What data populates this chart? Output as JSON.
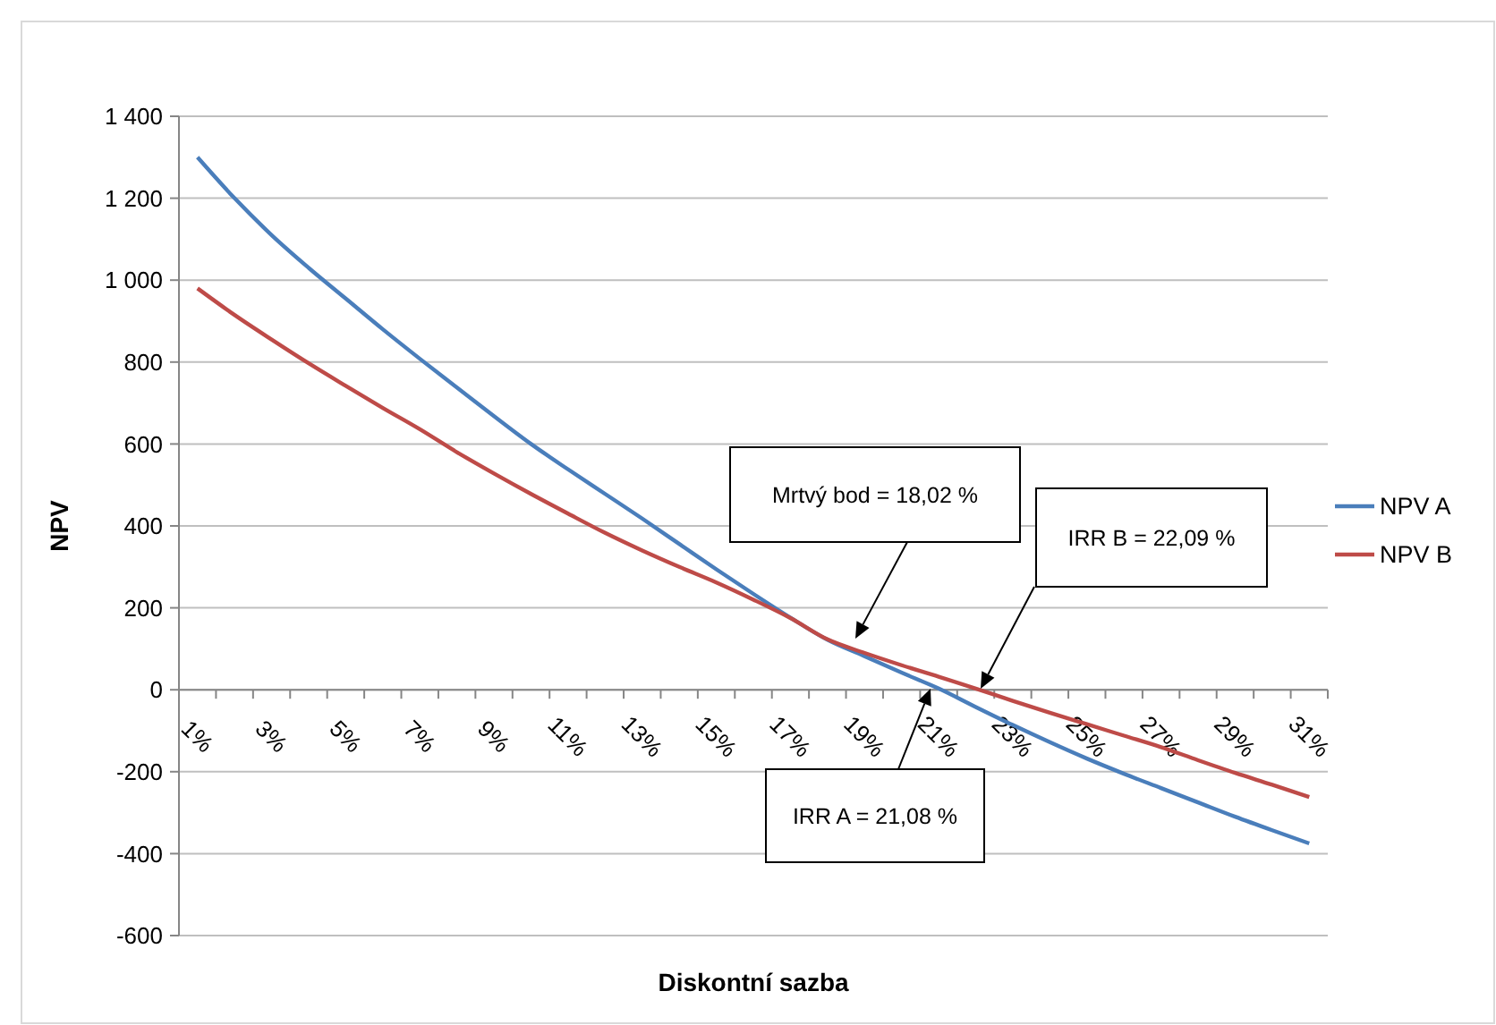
{
  "chart_data": {
    "type": "line",
    "xlabel": "Diskontní sazba",
    "ylabel": "NPV",
    "categories": [
      "1%",
      null,
      "3%",
      null,
      "5%",
      null,
      "7%",
      null,
      "9%",
      null,
      "11%",
      null,
      "13%",
      null,
      "15%",
      null,
      "17%",
      null,
      "19%",
      null,
      "21%",
      null,
      "23%",
      null,
      "25%",
      null,
      "27%",
      null,
      "29%",
      null,
      "31%"
    ],
    "series": [
      {
        "name": "NPV A",
        "color": "#4a7ebb",
        "values": [
          1300,
          1200,
          1110,
          1030,
          955,
          880,
          808,
          738,
          668,
          600,
          538,
          478,
          418,
          356,
          294,
          234,
          176,
          122,
          82,
          42,
          3,
          -42,
          -86,
          -128,
          -168,
          -205,
          -240,
          -275,
          -310,
          -343,
          -375
        ]
      },
      {
        "name": "NPV B",
        "color": "#be4b48",
        "values": [
          980,
          915,
          855,
          797,
          742,
          688,
          636,
          580,
          528,
          478,
          430,
          383,
          340,
          300,
          262,
          220,
          175,
          123,
          90,
          60,
          32,
          3,
          -27,
          -56,
          -84,
          -112,
          -140,
          -172,
          -203,
          -232,
          -262
        ]
      }
    ],
    "ylim": [
      -600,
      1400
    ],
    "yticks": [
      -600,
      -400,
      -200,
      0,
      200,
      {
        "value": 400,
        "label": "400"
      },
      600,
      800,
      {
        "value": 1000,
        "label": "1 000"
      },
      {
        "value": 1200,
        "label": "1 200"
      },
      {
        "value": 1400,
        "label": "1 400"
      }
    ],
    "grid": "y",
    "legend": "right",
    "marker": "none",
    "line_style": "solid",
    "annotations": [
      "Mrtvý bod = 18,02 %",
      "IRR B = 22,09 %",
      "IRR A = 21,08 %"
    ]
  }
}
